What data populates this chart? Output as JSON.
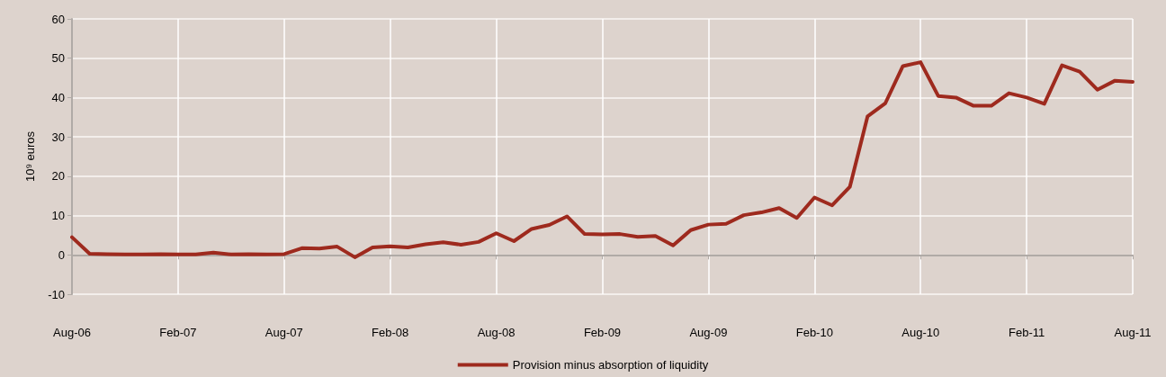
{
  "chart_data": {
    "type": "line",
    "ylabel": "10⁹ euros",
    "categories": [
      "Aug-06",
      null,
      null,
      null,
      null,
      null,
      "Feb-07",
      null,
      null,
      null,
      null,
      null,
      "Aug-07",
      null,
      null,
      null,
      null,
      null,
      "Feb-08",
      null,
      null,
      null,
      null,
      null,
      "Aug-08",
      null,
      null,
      null,
      null,
      null,
      "Feb-09",
      null,
      null,
      null,
      null,
      null,
      "Aug-09",
      null,
      null,
      null,
      null,
      null,
      "Feb-10",
      null,
      null,
      null,
      null,
      null,
      "Aug-10",
      null,
      null,
      null,
      null,
      null,
      "Feb-11",
      null,
      null,
      null,
      null,
      null,
      "Aug-11"
    ],
    "series": [
      {
        "name": "Provision minus absorption of liquidity",
        "color": "#9e2a1e",
        "values": [
          4.5,
          0.3,
          0.2,
          0.1,
          0.1,
          0.2,
          0.1,
          0.1,
          0.6,
          0.1,
          0.2,
          0.1,
          0.2,
          1.7,
          1.6,
          2.1,
          -0.6,
          1.9,
          2.2,
          1.9,
          2.7,
          3.2,
          2.6,
          3.3,
          5.5,
          3.5,
          6.6,
          7.6,
          9.8,
          5.3,
          5.2,
          5.3,
          4.6,
          4.8,
          2.4,
          6.3,
          7.7,
          7.9,
          10.1,
          10.8,
          11.9,
          9.4,
          14.6,
          12.6,
          17.3,
          35.2,
          38.5,
          48.0,
          49.0,
          40.4,
          40.0,
          37.9,
          37.9,
          41.1,
          40.0,
          38.4,
          48.2,
          46.6,
          42.0,
          44.3,
          44.0
        ]
      }
    ],
    "ylim": [
      -10,
      60
    ],
    "yticks": [
      -10,
      0,
      10,
      20,
      30,
      40,
      50,
      60
    ],
    "grid": true,
    "legend": "bottom",
    "marker": "none",
    "line_style": "solid"
  }
}
